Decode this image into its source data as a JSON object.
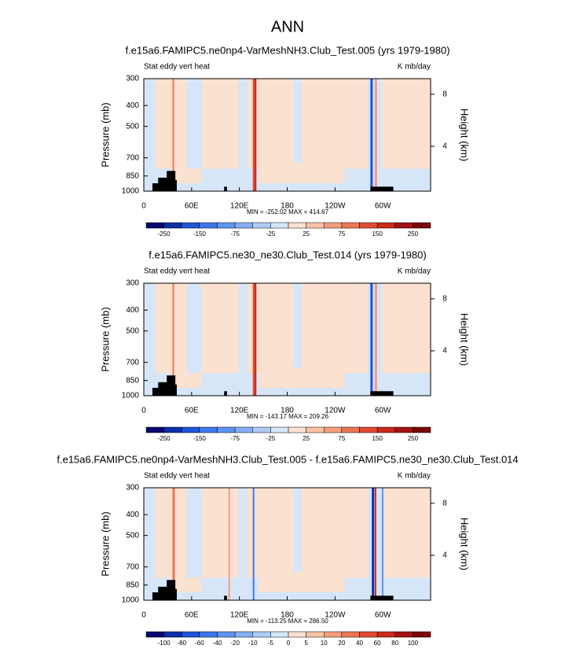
{
  "title": "ANN",
  "chart_data": [
    {
      "type": "contour",
      "title": "f.e15a6.FAMIPC5.ne0np4-VarMeshNH3.Club_Test.005 (yrs 1979-1980)",
      "left_label": "Stat eddy vert heat",
      "right_label": "K mb/day",
      "ylabel": "Pressure (mb)",
      "y2label": "Height (km)",
      "stats": "MIN = -252.02  MAX = 414.67",
      "xlim": [
        0,
        360
      ],
      "xticks": [
        0,
        {
          "value": 60,
          "label": "60E"
        },
        {
          "value": 120,
          "label": "120E"
        },
        180,
        {
          "value": 240,
          "label": "120W"
        },
        {
          "value": 300,
          "label": "60W"
        }
      ],
      "ylim": [
        1000,
        300
      ],
      "yscale": "log",
      "yticks": [
        300,
        400,
        500,
        700,
        850,
        1000
      ],
      "y2lim": [
        0.55,
        9.2
      ],
      "y2ticks": [
        4,
        8
      ],
      "colorbar": {
        "labels": [
          -250,
          -150,
          -75,
          -25,
          25,
          75,
          150,
          250
        ],
        "colors": [
          "#08086e",
          "#0c2fa8",
          "#1f55d6",
          "#3a78eb",
          "#5e94f0",
          "#86aef3",
          "#aecbf5",
          "#d6e6f8",
          "#fbe1d0",
          "#f8c2a5",
          "#f49e7c",
          "#ee7553",
          "#e04b32",
          "#c72a1d",
          "#a21212",
          "#7a0808"
        ]
      }
    },
    {
      "type": "contour",
      "title": "f.e15a6.FAMIPC5.ne30_ne30.Club_Test.014 (yrs 1979-1980)",
      "left_label": "Stat eddy vert heat",
      "right_label": "K mb/day",
      "ylabel": "Pressure (mb)",
      "y2label": "Height (km)",
      "stats": "MIN = -143.17  MAX = 209.26",
      "xlim": [
        0,
        360
      ],
      "xticks": [
        0,
        {
          "value": 60,
          "label": "60E"
        },
        {
          "value": 120,
          "label": "120E"
        },
        180,
        {
          "value": 240,
          "label": "120W"
        },
        {
          "value": 300,
          "label": "60W"
        }
      ],
      "ylim": [
        1000,
        300
      ],
      "yscale": "log",
      "yticks": [
        300,
        400,
        500,
        700,
        850,
        1000
      ],
      "y2lim": [
        0.55,
        9.2
      ],
      "y2ticks": [
        4,
        8
      ],
      "colorbar": {
        "labels": [
          -250,
          -150,
          -75,
          -25,
          25,
          75,
          150,
          250
        ],
        "colors": [
          "#08086e",
          "#0c2fa8",
          "#1f55d6",
          "#3a78eb",
          "#5e94f0",
          "#86aef3",
          "#aecbf5",
          "#d6e6f8",
          "#fbe1d0",
          "#f8c2a5",
          "#f49e7c",
          "#ee7553",
          "#e04b32",
          "#c72a1d",
          "#a21212",
          "#7a0808"
        ]
      }
    },
    {
      "type": "contour",
      "title": "f.e15a6.FAMIPC5.ne0np4-VarMeshNH3.Club_Test.005 - f.e15a6.FAMIPC5.ne30_ne30.Club_Test.014",
      "left_label": "Stat eddy vert heat",
      "right_label": "K mb/day",
      "ylabel": "Pressure (mb)",
      "y2label": "Height (km)",
      "stats": "MIN = -113.25  MAX = 286.50",
      "xlim": [
        0,
        360
      ],
      "xticks": [
        0,
        {
          "value": 60,
          "label": "60E"
        },
        {
          "value": 120,
          "label": "120E"
        },
        180,
        {
          "value": 240,
          "label": "120W"
        },
        {
          "value": 300,
          "label": "60W"
        }
      ],
      "ylim": [
        1000,
        300
      ],
      "yscale": "log",
      "yticks": [
        300,
        400,
        500,
        700,
        850,
        1000
      ],
      "y2lim": [
        0.55,
        9.2
      ],
      "y2ticks": [
        4,
        8
      ],
      "colorbar": {
        "labels": [
          -100,
          -80,
          -60,
          -40,
          -20,
          -10,
          -5,
          0,
          5,
          10,
          20,
          40,
          60,
          80,
          100
        ],
        "colors": [
          "#08086e",
          "#0c2fa8",
          "#1f55d6",
          "#3a78eb",
          "#5e94f0",
          "#86aef3",
          "#aecbf5",
          "#d6e6f8",
          "#fbe1d0",
          "#f8c2a5",
          "#f49e7c",
          "#ee7553",
          "#e04b32",
          "#c72a1d",
          "#a21212",
          "#7a0808"
        ]
      }
    }
  ]
}
